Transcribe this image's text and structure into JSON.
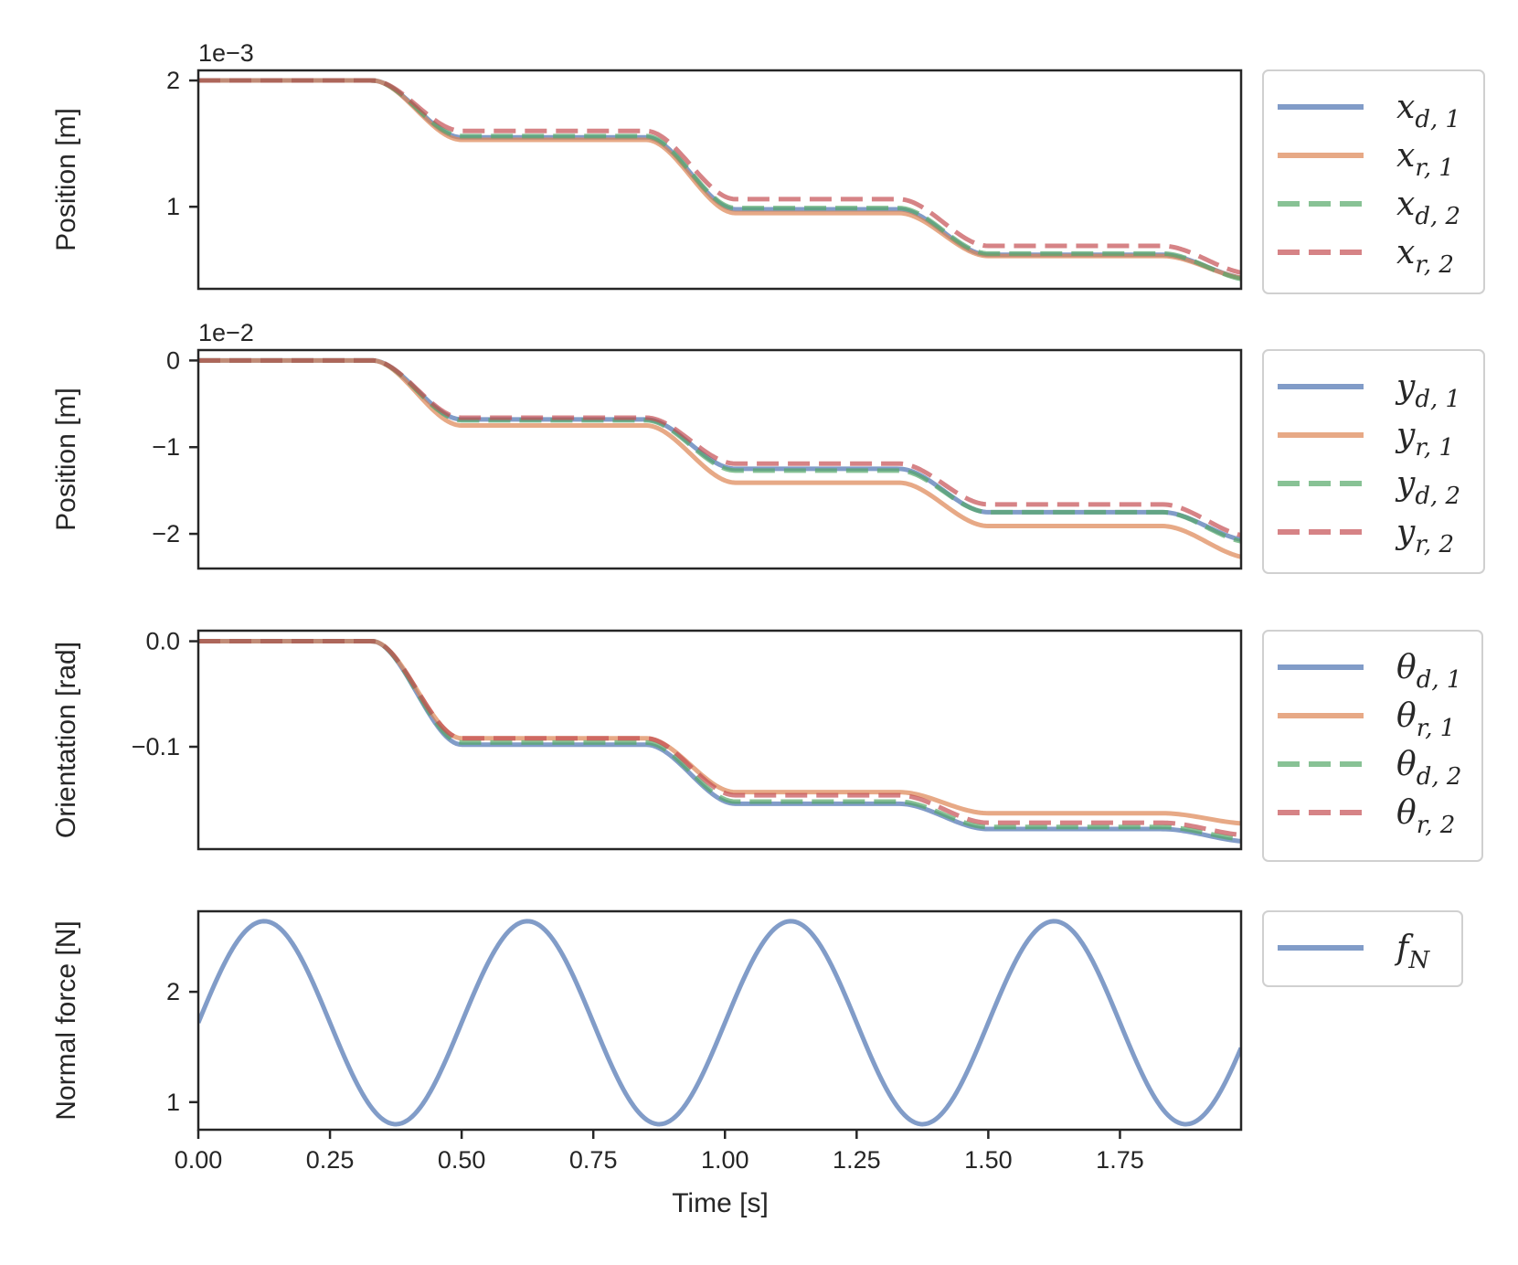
{
  "chart_data": [
    {
      "type": "line",
      "ylabel": "Position [m]",
      "offset_label": "1e−3",
      "xlim": [
        0,
        1.98
      ],
      "ylim": [
        0.35,
        2.08
      ],
      "yticks": [
        1,
        2
      ],
      "ytick_labels": [
        "1",
        "2"
      ],
      "series": [
        {
          "name": "x",
          "sub": "d, 1",
          "color": "#4c72b0",
          "dash": "solid",
          "levels": [
            2.0,
            1.55,
            0.98,
            0.62,
            0.43
          ]
        },
        {
          "name": "x",
          "sub": "r, 1",
          "color": "#dd8452",
          "dash": "solid",
          "levels": [
            2.0,
            1.53,
            0.95,
            0.61,
            0.43
          ]
        },
        {
          "name": "x",
          "sub": "d, 2",
          "color": "#55a868",
          "dash": "dashed",
          "levels": [
            2.0,
            1.56,
            0.99,
            0.63,
            0.42
          ]
        },
        {
          "name": "x",
          "sub": "r, 2",
          "color": "#c44e52",
          "dash": "dashed",
          "levels": [
            2.0,
            1.6,
            1.06,
            0.69,
            0.47
          ]
        }
      ]
    },
    {
      "type": "line",
      "ylabel": "Position [m]",
      "offset_label": "1e−2",
      "xlim": [
        0,
        1.98
      ],
      "ylim": [
        -2.4,
        0.12
      ],
      "yticks": [
        0,
        -1,
        -2
      ],
      "ytick_labels": [
        "0",
        "−1",
        "−2"
      ],
      "series": [
        {
          "name": "y",
          "sub": "d, 1",
          "color": "#4c72b0",
          "dash": "solid",
          "levels": [
            0.0,
            -0.68,
            -1.25,
            -1.75,
            -2.08
          ]
        },
        {
          "name": "y",
          "sub": "r, 1",
          "color": "#dd8452",
          "dash": "solid",
          "levels": [
            0.0,
            -0.75,
            -1.41,
            -1.91,
            -2.28
          ]
        },
        {
          "name": "y",
          "sub": "d, 2",
          "color": "#55a868",
          "dash": "dashed",
          "levels": [
            0.0,
            -0.69,
            -1.27,
            -1.75,
            -2.1
          ]
        },
        {
          "name": "y",
          "sub": "r, 2",
          "color": "#c44e52",
          "dash": "dashed",
          "levels": [
            0.0,
            -0.66,
            -1.19,
            -1.66,
            -2.03
          ]
        }
      ]
    },
    {
      "type": "line",
      "ylabel": "Orientation [rad]",
      "offset_label": "",
      "xlim": [
        0,
        1.98
      ],
      "ylim": [
        -0.197,
        0.01
      ],
      "yticks": [
        0.0,
        -0.1
      ],
      "ytick_labels": [
        "0.0",
        "−0.1"
      ],
      "series": [
        {
          "name": "θ",
          "sub": "d, 1",
          "color": "#4c72b0",
          "dash": "solid",
          "levels": [
            0.0,
            -0.098,
            -0.154,
            -0.178,
            -0.19
          ]
        },
        {
          "name": "θ",
          "sub": "r, 1",
          "color": "#dd8452",
          "dash": "solid",
          "levels": [
            0.0,
            -0.092,
            -0.143,
            -0.163,
            -0.173
          ]
        },
        {
          "name": "θ",
          "sub": "d, 2",
          "color": "#55a868",
          "dash": "dashed",
          "levels": [
            0.0,
            -0.096,
            -0.152,
            -0.176,
            -0.188
          ]
        },
        {
          "name": "θ",
          "sub": "r, 2",
          "color": "#c44e52",
          "dash": "dashed",
          "levels": [
            0.0,
            -0.092,
            -0.146,
            -0.172,
            -0.184
          ]
        }
      ]
    },
    {
      "type": "line",
      "ylabel": "Normal force [N]",
      "offset_label": "",
      "xlabel": "Time [s]",
      "xlim": [
        0,
        1.98
      ],
      "ylim": [
        0.75,
        2.73
      ],
      "yticks": [
        1,
        2
      ],
      "ytick_labels": [
        "1",
        "2"
      ],
      "xticks": [
        0,
        0.25,
        0.5,
        0.75,
        1.0,
        1.25,
        1.5,
        1.75
      ],
      "xtick_labels": [
        "0.00",
        "0.25",
        "0.50",
        "0.75",
        "1.00",
        "1.25",
        "1.50",
        "1.75"
      ],
      "series": [
        {
          "name": "f",
          "sub": "N",
          "color": "#4c72b0",
          "dash": "solid",
          "mean": 1.72,
          "amplitude": 0.92,
          "frequency_hz": 2
        }
      ]
    }
  ]
}
